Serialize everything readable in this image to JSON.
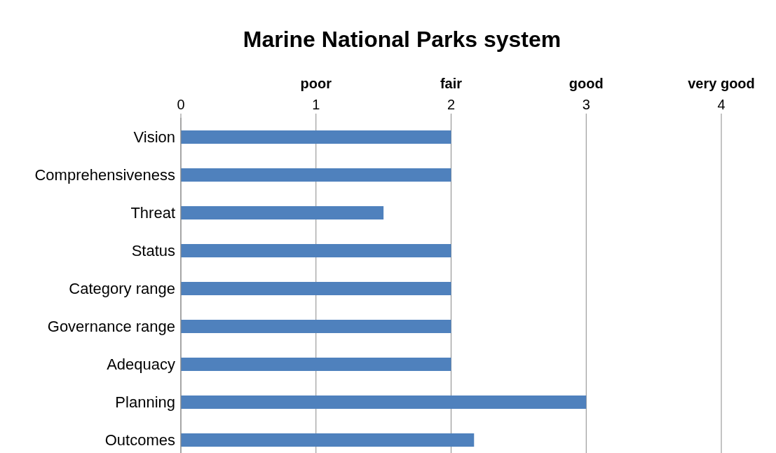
{
  "chart_data": {
    "type": "bar",
    "orientation": "horizontal",
    "title": "Marine National Parks system",
    "categories": [
      "Vision",
      "Comprehensiveness",
      "Threat",
      "Status",
      "Category range",
      "Governance range",
      "Adequacy",
      "Planning",
      "Outcomes"
    ],
    "values": [
      2,
      2,
      1.5,
      2,
      2,
      2,
      2,
      3,
      2.17
    ],
    "color": "#4f81bd",
    "xlim": [
      0,
      4
    ],
    "xticks": [
      0,
      1,
      2,
      3,
      4
    ],
    "annotations": [
      "poor",
      "fair",
      "good",
      "very good"
    ],
    "grid": "x"
  }
}
